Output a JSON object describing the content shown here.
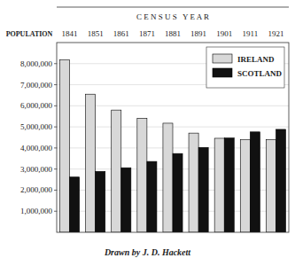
{
  "chart_data": {
    "type": "bar",
    "xlabel": "C E N S U S   Y E A R",
    "ylabel": "POPULATION",
    "annotations": [
      "Drawn by J. D. Hackett"
    ],
    "categories": [
      "1841",
      "1851",
      "1861",
      "1871",
      "1881",
      "1891",
      "1901",
      "1911",
      "1921"
    ],
    "series": [
      {
        "name": "IRELAND",
        "color": "#d8d8d8",
        "values": [
          8175000,
          6552000,
          5798000,
          5412000,
          5175000,
          4705000,
          4459000,
          4390000,
          4390000
        ]
      },
      {
        "name": "SCOTLAND",
        "color": "#111111",
        "values": [
          2620000,
          2889000,
          3062000,
          3360000,
          3736000,
          4026000,
          4472000,
          4761000,
          4882000
        ]
      }
    ],
    "ylim": [
      0,
      9000000
    ],
    "yticks": [
      {
        "value": 1000000,
        "label": "1,000,000"
      },
      {
        "value": 2000000,
        "label": "2,000,000"
      },
      {
        "value": 3000000,
        "label": "3,000,000"
      },
      {
        "value": 4000000,
        "label": "4,000,000"
      },
      {
        "value": 5000000,
        "label": "5,000,000"
      },
      {
        "value": 6000000,
        "label": "6,000,000"
      },
      {
        "value": 7000000,
        "label": "7,000,000"
      },
      {
        "value": 8000000,
        "label": "8,000,000"
      }
    ],
    "grid": true,
    "legend": "upper right"
  }
}
